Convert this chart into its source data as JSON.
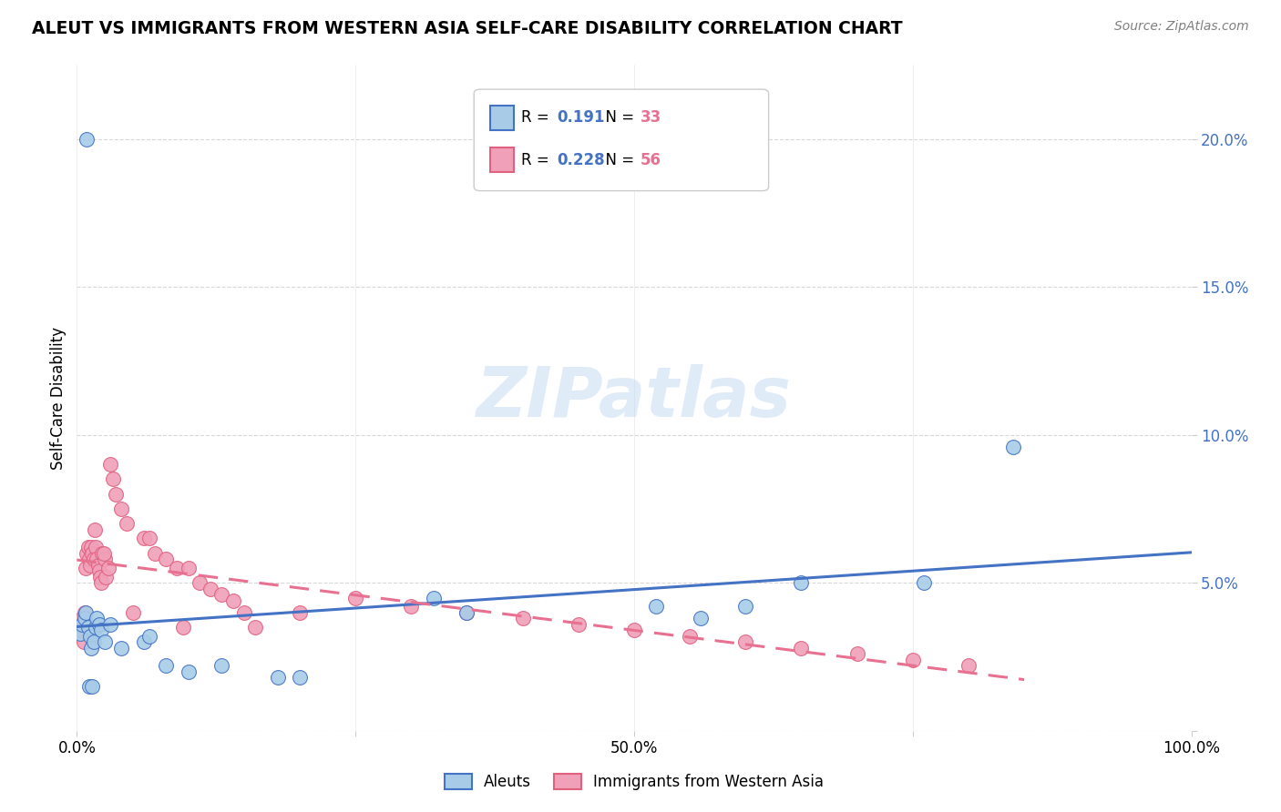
{
  "title": "ALEUT VS IMMIGRANTS FROM WESTERN ASIA SELF-CARE DISABILITY CORRELATION CHART",
  "source": "Source: ZipAtlas.com",
  "ylabel": "Self-Care Disability",
  "xlim": [
    0.0,
    1.0
  ],
  "ylim": [
    0.0,
    0.225
  ],
  "aleut_color": "#a8cce8",
  "aleut_edge_color": "#4472c4",
  "immigrant_color": "#f0a0b8",
  "immigrant_edge_color": "#e06080",
  "aleut_line_color": "#4472c4",
  "immigrant_line_color": "#e87090",
  "background_color": "#ffffff",
  "grid_color": "#d8d8d8",
  "r_aleut": "0.191",
  "n_aleut": "33",
  "r_immigrant": "0.228",
  "n_immigrant": "56"
}
